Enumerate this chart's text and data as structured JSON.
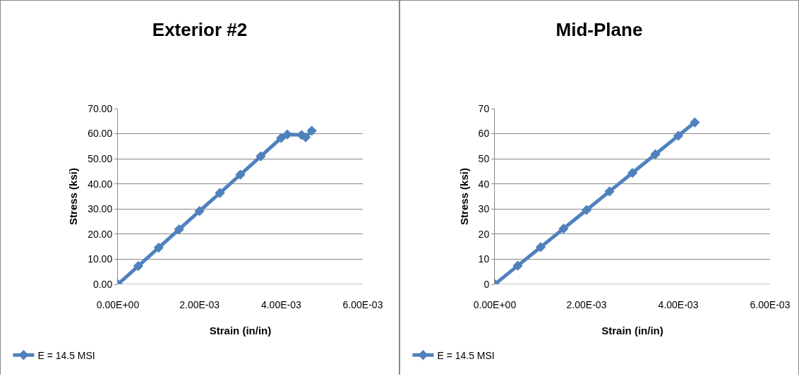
{
  "chart_data": [
    {
      "type": "line",
      "title": "Exterior #2",
      "xlabel": "Strain (in/in)",
      "ylabel": "Stress (ksi)",
      "series": [
        {
          "name": "E = 14.5 MSI",
          "color": "#4f81bd",
          "x": [
            0,
            0.0005,
            0.001,
            0.0015,
            0.002,
            0.0025,
            0.003,
            0.0035,
            0.004,
            0.00415,
            0.0045,
            0.0046,
            0.00475
          ],
          "values": [
            0,
            7.3,
            14.6,
            21.9,
            29.2,
            36.4,
            43.7,
            51,
            58.3,
            59.7,
            59.5,
            58.6,
            61.2
          ]
        }
      ],
      "xlim": [
        0,
        0.006
      ],
      "xticks": [
        {
          "value": 0,
          "label": "0.00E+00"
        },
        {
          "value": 0.002,
          "label": "2.00E-03"
        },
        {
          "value": 0.004,
          "label": "4.00E-03"
        },
        {
          "value": 0.006,
          "label": "6.00E-03"
        }
      ],
      "ylim": [
        0,
        70
      ],
      "yticks": [
        {
          "value": 0,
          "label": "0.00"
        },
        {
          "value": 10,
          "label": "10.00"
        },
        {
          "value": 20,
          "label": "20.00"
        },
        {
          "value": 30,
          "label": "30.00"
        },
        {
          "value": 40,
          "label": "40.00"
        },
        {
          "value": 50,
          "label": "50.00"
        },
        {
          "value": 60,
          "label": "60.00"
        },
        {
          "value": 70,
          "label": "70.00"
        }
      ],
      "grid": "y",
      "legend": "bottom left",
      "marker": "diamond",
      "line_style": "solid"
    },
    {
      "type": "line",
      "title": "Mid-Plane",
      "xlabel": "Strain (in/in)",
      "ylabel": "Stress (ksi)",
      "series": [
        {
          "name": "E = 14.5 MSI",
          "color": "#4f81bd",
          "x": [
            0,
            0.0005,
            0.001,
            0.0015,
            0.002,
            0.0025,
            0.003,
            0.0035,
            0.004,
            0.00436
          ],
          "values": [
            0,
            7.4,
            14.8,
            22.2,
            29.6,
            37,
            44.4,
            51.8,
            59.2,
            64.5
          ]
        }
      ],
      "xlim": [
        0,
        0.006
      ],
      "xticks": [
        {
          "value": 0,
          "label": "0.00E+00"
        },
        {
          "value": 0.002,
          "label": "2.00E-03"
        },
        {
          "value": 0.004,
          "label": "4.00E-03"
        },
        {
          "value": 0.006,
          "label": "6.00E-03"
        }
      ],
      "ylim": [
        0,
        70
      ],
      "yticks": [
        0,
        10,
        20,
        30,
        40,
        50,
        60,
        70
      ],
      "grid": "y",
      "legend": "bottom left",
      "marker": "diamond",
      "line_style": "solid"
    }
  ]
}
